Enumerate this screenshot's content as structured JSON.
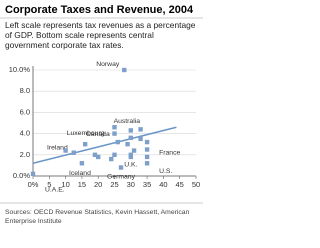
{
  "chart_data": {
    "type": "scatter",
    "title": "Corporate Taxes and Revenue, 2004",
    "subtitle": [
      "Left scale represents tax revenues as a percentage",
      "of GDP. Bottom scale represents central",
      "government corporate tax rates."
    ],
    "source": [
      "Sources: OECD Revenue Statistics, Kevin Hassett, American",
      "Enterprise Institute"
    ],
    "xlim": [
      0,
      50
    ],
    "ylim": [
      0,
      10
    ],
    "xticks": [
      {
        "value": 0,
        "label": "0%"
      },
      5,
      10,
      15,
      20,
      25,
      30,
      35,
      40,
      45,
      50
    ],
    "yticks": [
      {
        "value": 0,
        "label": "0.0%"
      },
      {
        "value": 2,
        "label": "2.0"
      },
      {
        "value": 4,
        "label": "4.0"
      },
      {
        "value": 6,
        "label": "6.0"
      },
      {
        "value": 8,
        "label": "8.0"
      },
      {
        "value": 10,
        "label": "10.0%"
      }
    ],
    "grid": true,
    "series": [
      {
        "color": "#7d9fca",
        "x": [
          28,
          30,
          33,
          25,
          0,
          15,
          12.5,
          10,
          16,
          19,
          25,
          26,
          30,
          30,
          31,
          33,
          35,
          35,
          35,
          27,
          29,
          24,
          20,
          30,
          25,
          35
        ],
        "values": [
          10.0,
          4.3,
          4.4,
          4.6,
          0.2,
          1.2,
          2.2,
          2.4,
          3.0,
          2.0,
          2.0,
          3.2,
          2.0,
          1.8,
          2.4,
          3.5,
          2.5,
          1.8,
          1.2,
          0.8,
          3.0,
          1.6,
          1.8,
          3.6,
          4.0,
          3.2
        ],
        "labels": [
          "Norway",
          "Australia",
          null,
          "Luxembourg",
          "U.A.E.",
          "Iceland",
          "Ireland",
          null,
          null,
          null,
          null,
          "Canada",
          "U.K.",
          null,
          null,
          null,
          "France",
          null,
          "U.S.",
          "Germany",
          null,
          null,
          null,
          null,
          null,
          null
        ]
      }
    ],
    "trend": {
      "color": "#6b96c8",
      "x": [
        0,
        44
      ],
      "values": [
        1.2,
        4.6
      ]
    }
  }
}
